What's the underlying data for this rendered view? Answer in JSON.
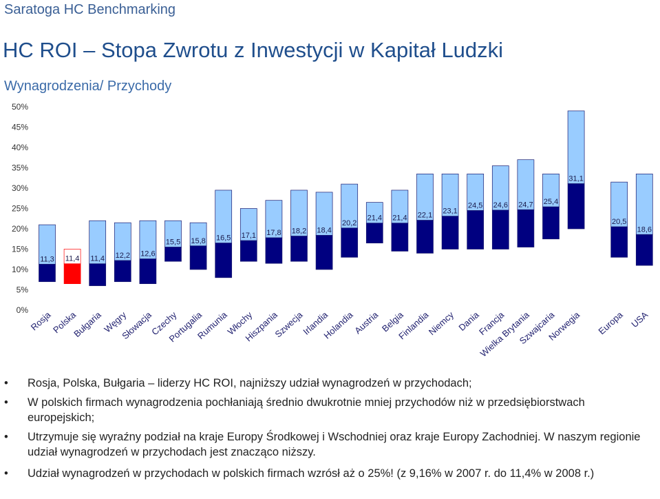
{
  "header": {
    "brand": "Saratoga HC Benchmarking",
    "title": "HC ROI – Stopa Zwrotu z Inwestycji w Kapitał Ludzki",
    "subtitle": "Wynagrodzenia/ Przychody"
  },
  "chart_data": {
    "type": "floating-bar",
    "ylim": [
      0,
      50
    ],
    "yticks": [
      "0%",
      "5%",
      "10%",
      "15%",
      "20%",
      "25%",
      "30%",
      "35%",
      "40%",
      "45%",
      "50%"
    ],
    "grid": false,
    "categories": [
      "Rosja",
      "Polska",
      "Bułgaria",
      "Węgry",
      "Słowacja",
      "Czechy",
      "Portugalia",
      "Rumunia",
      "Włochy",
      "Hiszpania",
      "Szwecja",
      "Irlandia",
      "Holandia",
      "Austria",
      "Belgia",
      "Finlandia",
      "Niemcy",
      "Dania",
      "Francja",
      "Wielka Brytania",
      "Szwajcaria",
      "Norwegia",
      "Europa",
      "USA"
    ],
    "values": [
      11.3,
      11.4,
      11.4,
      12.2,
      12.6,
      15.5,
      15.8,
      16.5,
      17.1,
      17.8,
      18.2,
      18.4,
      20.2,
      21.4,
      21.4,
      22.1,
      23.1,
      24.5,
      24.6,
      24.7,
      25.4,
      31.1,
      20.5,
      18.6
    ],
    "value_labels": [
      "11,3",
      "11,4",
      "11,4",
      "12,2",
      "12,6",
      "15,5",
      "15,8",
      "16,5",
      "17,1",
      "17,8",
      "18,2",
      "18,4",
      "20,2",
      "21,4",
      "21,4",
      "22,1",
      "23,1",
      "24,5",
      "24,6",
      "24,7",
      "25,4",
      "31,1",
      "20,5",
      "18,6"
    ],
    "range_low": [
      7.0,
      6.5,
      6.0,
      7.0,
      6.5,
      12.0,
      10.0,
      8.0,
      12.0,
      11.5,
      12.0,
      10.0,
      13.0,
      16.5,
      14.5,
      14.0,
      15.0,
      15.0,
      15.0,
      15.5,
      17.5,
      20.0,
      13.0,
      11.0
    ],
    "range_high": [
      21.0,
      15.0,
      22.0,
      21.5,
      22.0,
      22.0,
      21.5,
      29.5,
      25.0,
      27.0,
      29.5,
      29.0,
      31.0,
      26.5,
      29.5,
      33.5,
      33.5,
      33.5,
      35.5,
      37.0,
      33.5,
      49.0,
      31.5,
      33.5
    ],
    "highlight_category": "Polska",
    "colors": {
      "upper": "#99ccff",
      "lower": "#000080",
      "highlight_upper": "#ffffff",
      "highlight_lower": "#ff0000",
      "highlight_border": "#ff0000"
    }
  },
  "bullets": [
    "Rosja, Polska, Bułgaria – liderzy HC ROI, najniższy udział wynagrodzeń w przychodach;",
    "W polskich firmach wynagrodzenia pochłaniają średnio dwukrotnie mniej przychodów niż w przedsiębiorstwach europejskich;",
    "Utrzymuje się wyraźny podział na kraje Europy Środkowej i Wschodniej oraz kraje Europy Zachodniej. W naszym regionie udział wynagrodzeń w przychodach jest znacząco niższy.",
    "Udział wynagrodzeń w przychodach w polskich firmach wzrósł aż o 25%! (z 9,16% w 2007 r. do 11,4% w 2008 r.)"
  ]
}
